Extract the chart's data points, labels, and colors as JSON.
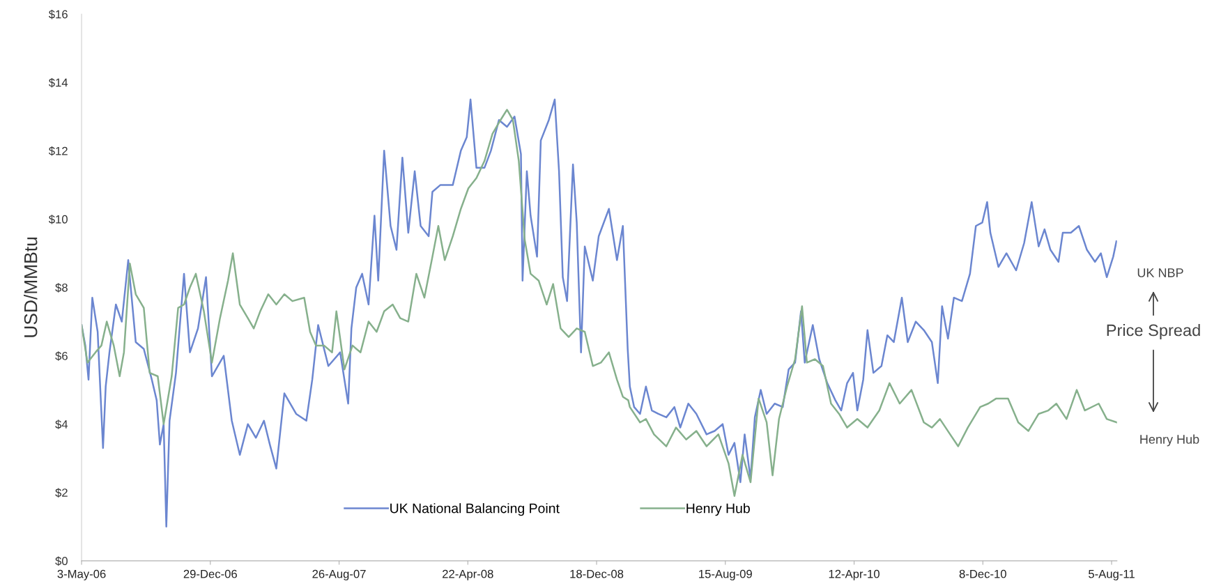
{
  "chart_data": {
    "type": "line",
    "ylabel": "USD/MMBtu",
    "xlim": [
      "2006-05-03",
      "2011-08-15"
    ],
    "xticks": [
      {
        "value": "2006-05-03",
        "label": "3-May-06"
      },
      {
        "value": "2006-12-29",
        "label": "29-Dec-06"
      },
      {
        "value": "2007-08-26",
        "label": "26-Aug-07"
      },
      {
        "value": "2008-04-22",
        "label": "22-Apr-08"
      },
      {
        "value": "2008-12-18",
        "label": "18-Dec-08"
      },
      {
        "value": "2009-08-15",
        "label": "15-Aug-09"
      },
      {
        "value": "2010-04-12",
        "label": "12-Apr-10"
      },
      {
        "value": "2010-12-08",
        "label": "8-Dec-10"
      },
      {
        "value": "2011-08-05",
        "label": "5-Aug-11"
      }
    ],
    "ylim": [
      0,
      16
    ],
    "yticks": [
      {
        "value": 0,
        "label": "$0"
      },
      {
        "value": 2,
        "label": "$2"
      },
      {
        "value": 4,
        "label": "$4"
      },
      {
        "value": 6,
        "label": "$6"
      },
      {
        "value": 8,
        "label": "$8"
      },
      {
        "value": 10,
        "label": "$10"
      },
      {
        "value": 12,
        "label": "$12"
      },
      {
        "value": 14,
        "label": "$14"
      },
      {
        "value": 16,
        "label": "$16"
      }
    ],
    "grid": false,
    "legend": "bottom",
    "marker": "none",
    "line_style": "solid",
    "annotations": [
      "UK NBP",
      "Price Spread",
      "Henry Hub"
    ],
    "series": [
      {
        "name": "UK National Balancing Point",
        "color": "#6b86d0",
        "x": [
          "2006-05-03",
          "2006-05-10",
          "2006-05-16",
          "2006-05-23",
          "2006-06-02",
          "2006-06-12",
          "2006-06-17",
          "2006-06-24",
          "2006-07-06",
          "2006-07-17",
          "2006-07-29",
          "2006-08-12",
          "2006-08-27",
          "2006-09-11",
          "2006-09-20",
          "2006-09-26",
          "2006-10-03",
          "2006-10-08",
          "2006-10-14",
          "2006-10-26",
          "2006-11-10",
          "2006-11-21",
          "2006-12-06",
          "2006-12-21",
          "2007-01-01",
          "2007-01-23",
          "2007-02-07",
          "2007-02-22",
          "2007-03-09",
          "2007-03-24",
          "2007-04-08",
          "2007-04-19",
          "2007-05-01",
          "2007-05-16",
          "2007-06-07",
          "2007-06-26",
          "2007-07-07",
          "2007-07-18",
          "2007-08-06",
          "2007-08-28",
          "2007-09-12",
          "2007-09-18",
          "2007-09-27",
          "2007-10-08",
          "2007-10-20",
          "2007-10-31",
          "2007-11-07",
          "2007-11-18",
          "2007-11-30",
          "2007-12-11",
          "2007-12-22",
          "2008-01-02",
          "2008-01-14",
          "2008-01-25",
          "2008-02-09",
          "2008-02-16",
          "2008-03-02",
          "2008-03-25",
          "2008-04-09",
          "2008-04-20",
          "2008-04-27",
          "2008-05-08",
          "2008-05-23",
          "2008-06-04",
          "2008-06-19",
          "2008-07-04",
          "2008-07-18",
          "2008-07-30",
          "2008-08-02",
          "2008-08-10",
          "2008-08-17",
          "2008-08-29",
          "2008-09-05",
          "2008-09-20",
          "2008-10-01",
          "2008-10-09",
          "2008-10-16",
          "2008-10-24",
          "2008-11-04",
          "2008-11-11",
          "2008-11-19",
          "2008-11-26",
          "2008-12-11",
          "2008-12-22",
          "2009-01-10",
          "2009-01-25",
          "2009-02-05",
          "2009-02-14",
          "2009-02-18",
          "2009-02-26",
          "2009-03-09",
          "2009-03-20",
          "2009-03-31",
          "2009-04-12",
          "2009-04-27",
          "2009-05-12",
          "2009-05-23",
          "2009-06-07",
          "2009-06-22",
          "2009-07-11",
          "2009-07-26",
          "2009-08-10",
          "2009-08-21",
          "2009-09-01",
          "2009-09-12",
          "2009-09-20",
          "2009-10-01",
          "2009-10-09",
          "2009-10-20",
          "2009-10-31",
          "2009-11-15",
          "2009-11-30",
          "2009-12-11",
          "2009-12-23",
          "2010-01-03",
          "2010-01-10",
          "2010-01-25",
          "2010-02-06",
          "2010-02-21",
          "2010-03-08",
          "2010-03-19",
          "2010-03-30",
          "2010-04-10",
          "2010-04-18",
          "2010-04-29",
          "2010-05-07",
          "2010-05-18",
          "2010-06-02",
          "2010-06-13",
          "2010-06-25",
          "2010-07-10",
          "2010-07-21",
          "2010-08-05",
          "2010-08-20",
          "2010-09-04",
          "2010-09-15",
          "2010-09-23",
          "2010-10-04",
          "2010-10-15",
          "2010-10-30",
          "2010-11-14",
          "2010-11-25",
          "2010-12-07",
          "2010-12-16",
          "2010-12-22",
          "2011-01-06",
          "2011-01-21",
          "2011-02-08",
          "2011-02-23",
          "2011-03-09",
          "2011-03-22",
          "2011-04-02",
          "2011-04-13",
          "2011-04-28",
          "2011-05-06",
          "2011-05-21",
          "2011-06-05",
          "2011-06-20",
          "2011-07-05",
          "2011-07-16",
          "2011-07-27",
          "2011-08-08",
          "2011-08-14"
        ],
        "values": [
          6.9,
          6.3,
          5.3,
          7.7,
          6.7,
          3.3,
          5.1,
          6.1,
          7.5,
          7.0,
          8.8,
          6.4,
          6.2,
          5.3,
          4.7,
          3.4,
          4.0,
          1.0,
          4.1,
          5.5,
          8.4,
          6.1,
          6.8,
          8.3,
          5.4,
          6.0,
          4.1,
          3.1,
          4.0,
          3.6,
          4.1,
          3.4,
          2.7,
          4.9,
          4.3,
          4.1,
          5.3,
          6.9,
          5.7,
          6.1,
          4.6,
          6.8,
          8.0,
          8.4,
          7.5,
          10.1,
          8.2,
          12.0,
          9.8,
          9.1,
          11.8,
          9.6,
          11.4,
          9.8,
          9.5,
          10.8,
          11.0,
          11.0,
          12.0,
          12.4,
          13.5,
          11.5,
          11.5,
          12.0,
          12.9,
          12.7,
          13.0,
          11.9,
          8.2,
          11.4,
          10.1,
          8.9,
          12.3,
          12.9,
          13.5,
          11.4,
          8.3,
          7.6,
          11.6,
          9.9,
          6.1,
          9.2,
          8.2,
          9.5,
          10.3,
          8.8,
          9.8,
          6.2,
          5.1,
          4.5,
          4.3,
          5.1,
          4.4,
          4.3,
          4.2,
          4.5,
          3.9,
          4.6,
          4.3,
          3.7,
          3.8,
          4.0,
          3.1,
          3.45,
          2.3,
          3.7,
          2.4,
          4.2,
          5.0,
          4.3,
          4.6,
          4.5,
          5.6,
          5.8,
          7.3,
          5.8,
          6.9,
          5.9,
          5.2,
          4.7,
          4.4,
          5.2,
          5.5,
          4.4,
          5.3,
          6.75,
          5.5,
          5.7,
          6.6,
          6.4,
          7.7,
          6.4,
          7.0,
          6.75,
          6.4,
          5.2,
          7.45,
          6.5,
          7.7,
          7.6,
          8.4,
          9.8,
          9.9,
          10.5,
          9.6,
          8.6,
          9.0,
          8.5,
          9.3,
          10.5,
          9.2,
          9.7,
          9.1,
          8.75,
          9.6,
          9.6,
          9.8,
          9.1,
          8.75,
          9.0,
          8.3,
          8.9,
          9.35
        ]
      },
      {
        "name": "Henry Hub",
        "color": "#86b08c",
        "x": [
          "2006-05-03",
          "2006-05-14",
          "2006-05-29",
          "2006-06-09",
          "2006-06-19",
          "2006-07-02",
          "2006-07-13",
          "2006-07-21",
          "2006-08-01",
          "2006-08-12",
          "2006-08-27",
          "2006-09-07",
          "2006-09-22",
          "2006-10-03",
          "2006-10-18",
          "2006-10-30",
          "2006-11-10",
          "2006-11-21",
          "2006-12-02",
          "2006-12-17",
          "2007-01-01",
          "2007-01-16",
          "2007-01-31",
          "2007-02-09",
          "2007-02-22",
          "2007-03-09",
          "2007-03-20",
          "2007-04-01",
          "2007-04-16",
          "2007-05-01",
          "2007-05-16",
          "2007-05-31",
          "2007-06-22",
          "2007-07-03",
          "2007-07-14",
          "2007-07-29",
          "2007-08-13",
          "2007-08-21",
          "2007-09-05",
          "2007-09-20",
          "2007-10-05",
          "2007-10-20",
          "2007-11-04",
          "2007-11-18",
          "2007-12-04",
          "2007-12-18",
          "2008-01-02",
          "2008-01-17",
          "2008-02-01",
          "2008-02-16",
          "2008-02-27",
          "2008-03-10",
          "2008-03-25",
          "2008-04-09",
          "2008-04-23",
          "2008-05-08",
          "2008-05-23",
          "2008-06-07",
          "2008-06-22",
          "2008-07-04",
          "2008-07-15",
          "2008-07-26",
          "2008-08-06",
          "2008-08-17",
          "2008-09-01",
          "2008-09-16",
          "2008-09-28",
          "2008-10-12",
          "2008-10-27",
          "2008-11-11",
          "2008-11-26",
          "2008-12-11",
          "2008-12-26",
          "2009-01-10",
          "2009-01-25",
          "2009-02-05",
          "2009-02-15",
          "2009-02-18",
          "2009-03-09",
          "2009-03-20",
          "2009-04-04",
          "2009-04-27",
          "2009-05-15",
          "2009-06-03",
          "2009-06-22",
          "2009-07-11",
          "2009-08-02",
          "2009-08-21",
          "2009-09-01",
          "2009-09-16",
          "2009-10-01",
          "2009-10-16",
          "2009-10-31",
          "2009-11-11",
          "2009-11-23",
          "2009-12-08",
          "2009-12-23",
          "2010-01-05",
          "2010-01-14",
          "2010-01-29",
          "2010-02-13",
          "2010-02-28",
          "2010-03-15",
          "2010-03-30",
          "2010-04-18",
          "2010-05-07",
          "2010-05-29",
          "2010-06-17",
          "2010-07-06",
          "2010-07-28",
          "2010-08-20",
          "2010-09-04",
          "2010-09-19",
          "2010-10-08",
          "2010-10-23",
          "2010-11-10",
          "2010-12-03",
          "2010-12-18",
          "2011-01-02",
          "2011-01-24",
          "2011-02-12",
          "2011-03-03",
          "2011-03-22",
          "2011-04-09",
          "2011-04-24",
          "2011-05-13",
          "2011-06-01",
          "2011-06-16",
          "2011-07-12",
          "2011-07-27",
          "2011-08-15"
        ],
        "values": [
          6.9,
          5.8,
          6.1,
          6.3,
          7.0,
          6.3,
          5.4,
          6.1,
          8.7,
          7.8,
          7.4,
          5.5,
          5.4,
          4.0,
          5.4,
          7.4,
          7.5,
          8.0,
          8.4,
          7.3,
          5.8,
          7.1,
          8.2,
          9.0,
          7.5,
          7.1,
          6.8,
          7.3,
          7.8,
          7.5,
          7.8,
          7.6,
          7.7,
          6.7,
          6.3,
          6.3,
          6.1,
          7.3,
          5.6,
          6.3,
          6.1,
          7.0,
          6.7,
          7.3,
          7.5,
          7.1,
          7.0,
          8.4,
          7.7,
          8.9,
          9.8,
          8.8,
          9.5,
          10.3,
          10.9,
          11.2,
          11.7,
          12.5,
          12.9,
          13.2,
          12.9,
          11.7,
          9.4,
          8.4,
          8.2,
          7.5,
          8.1,
          6.8,
          6.55,
          6.8,
          6.7,
          5.7,
          5.8,
          6.1,
          5.3,
          4.8,
          4.7,
          4.5,
          4.05,
          4.15,
          3.7,
          3.35,
          3.9,
          3.55,
          3.8,
          3.35,
          3.7,
          2.85,
          1.9,
          3.1,
          2.3,
          4.75,
          4.05,
          2.5,
          4.15,
          5.1,
          5.9,
          7.45,
          5.8,
          5.9,
          5.7,
          4.6,
          4.3,
          3.9,
          4.15,
          3.9,
          4.4,
          5.2,
          4.6,
          5.0,
          4.05,
          3.9,
          4.15,
          3.7,
          3.35,
          3.9,
          4.5,
          4.6,
          4.75,
          4.75,
          4.05,
          3.8,
          4.3,
          4.4,
          4.6,
          4.15,
          5.0,
          4.4,
          4.6,
          4.15,
          4.05
        ]
      }
    ]
  }
}
